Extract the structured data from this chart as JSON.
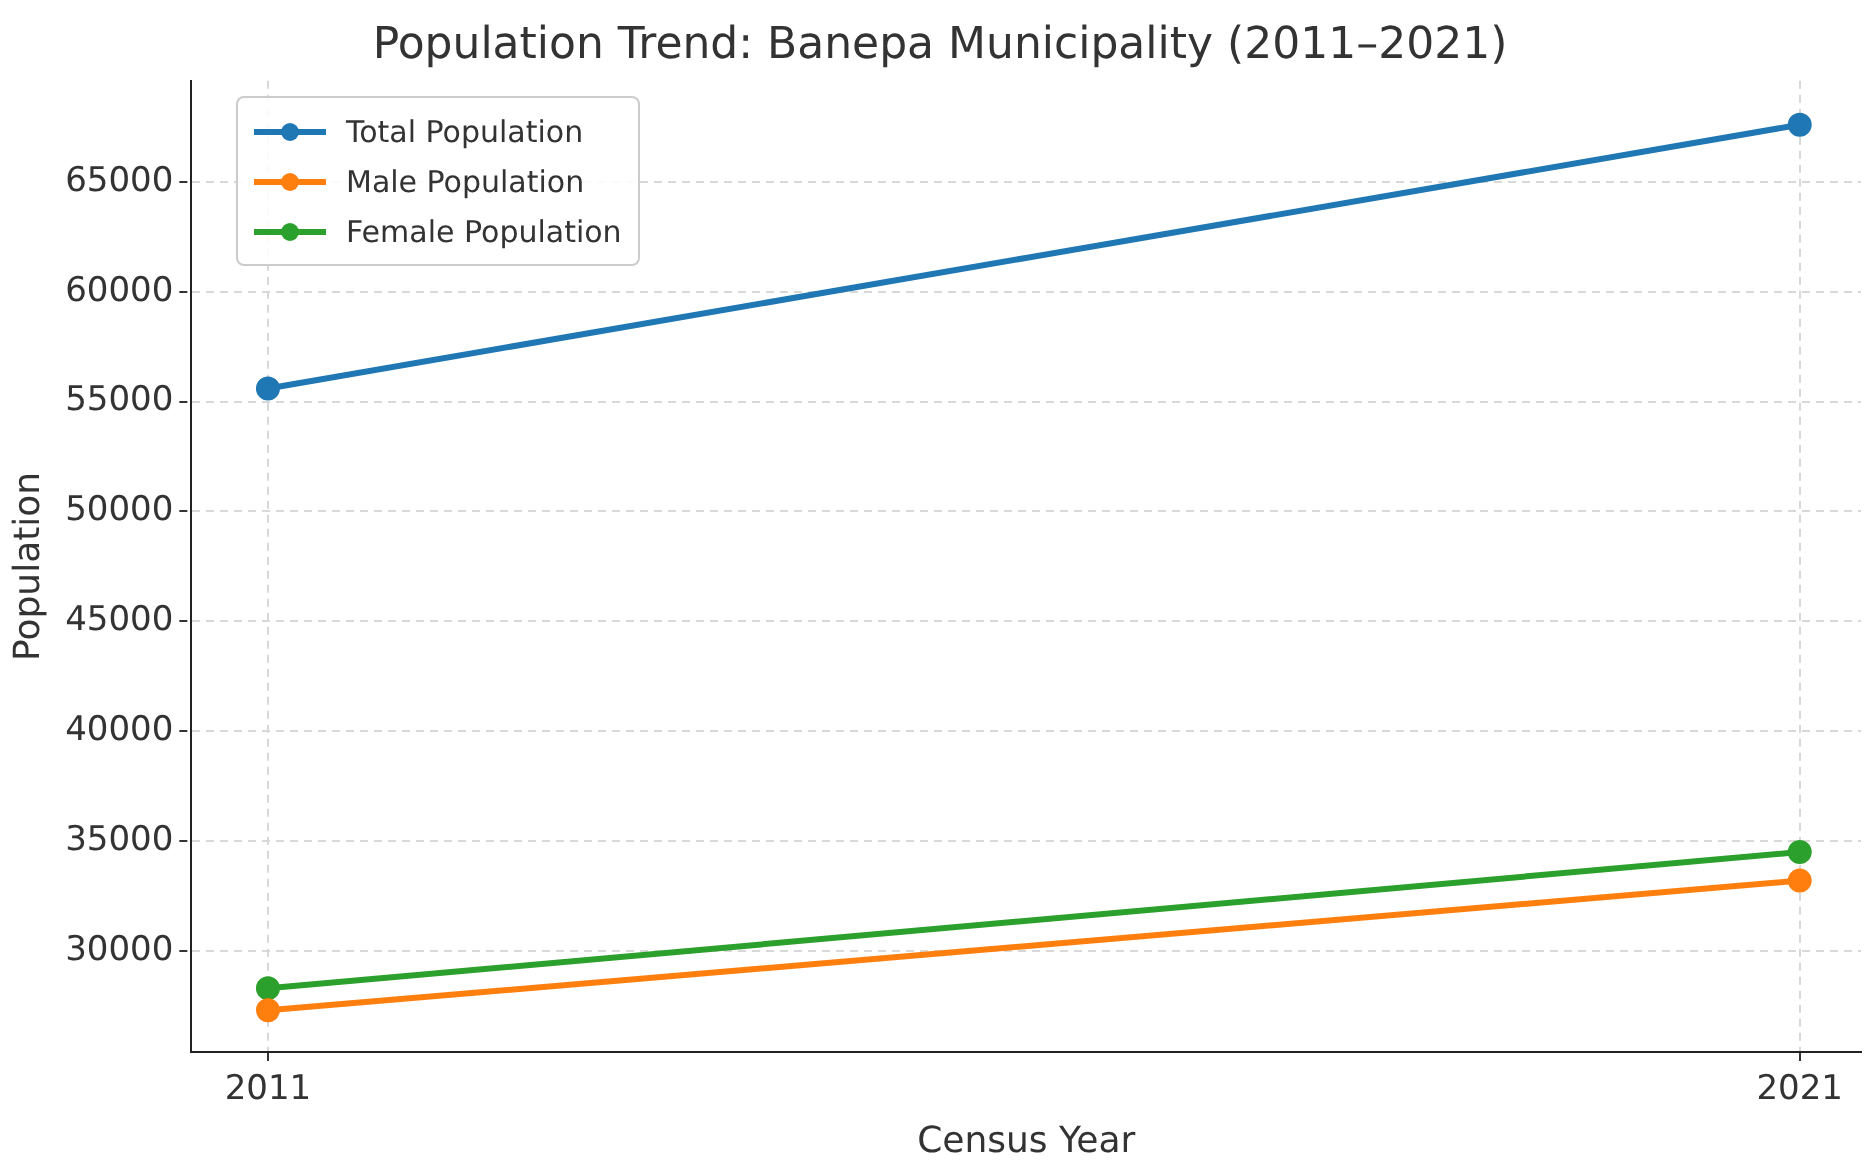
{
  "chart_data": {
    "type": "line",
    "title": "Population Trend: Banepa Municipality (2011–2021)",
    "xlabel": "Census Year",
    "ylabel": "Population",
    "x": [
      2011,
      2021
    ],
    "series": [
      {
        "name": "Total Population",
        "color": "#1f77b4",
        "values": [
          55600,
          67600
        ]
      },
      {
        "name": "Male Population",
        "color": "#ff7f0e",
        "values": [
          27300,
          33200
        ]
      },
      {
        "name": "Female Population",
        "color": "#2ca02c",
        "values": [
          28300,
          34500
        ]
      }
    ],
    "xlim": [
      2010.5,
      2021.4
    ],
    "xticks": [
      2011,
      2021
    ],
    "ylim": [
      25400,
      69600
    ],
    "yticks": [
      30000,
      35000,
      40000,
      45000,
      50000,
      55000,
      60000,
      65000
    ],
    "grid": true,
    "legend": "top left",
    "marker": "circle",
    "line_style": "solid"
  }
}
